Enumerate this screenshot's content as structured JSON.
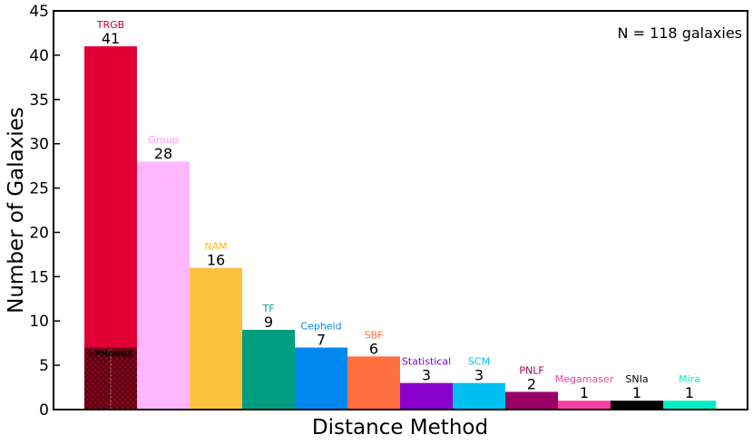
{
  "chart_data": {
    "type": "bar",
    "categories": [
      "TRGB",
      "Group",
      "NAM",
      "TF",
      "Cepheid",
      "SBF",
      "Statistical",
      "SCM",
      "PNLF",
      "Megamaser",
      "SNIa",
      "Mira"
    ],
    "values": [
      41,
      28,
      16,
      9,
      7,
      6,
      3,
      3,
      2,
      1,
      1,
      1
    ],
    "value_labels": [
      "41",
      "28",
      "16",
      "9",
      "7",
      "6",
      "3",
      "3",
      "2",
      "1",
      "1",
      "1"
    ],
    "colors": [
      "#e00034",
      "#ffb8ff",
      "#ffc23e",
      "#009e80",
      "#0088ee",
      "#ff6f3f",
      "#8800cc",
      "#00c0f2",
      "#990066",
      "#f53fa0",
      "#000000",
      "#00eec4"
    ],
    "label_colors": [
      "#cc0033",
      "#ff99ff",
      "#ffb81c",
      "#009e80",
      "#0088ee",
      "#ff6f3f",
      "#8800cc",
      "#00c0f2",
      "#990066",
      "#f53fa0",
      "#000000",
      "#00eec4"
    ],
    "hatched_subset": {
      "category": "TRGB",
      "value": 7,
      "label": "+PHANGS",
      "color": "#990020"
    },
    "xlabel": "Distance Method",
    "ylabel": "Number of Galaxies",
    "ylim": [
      0,
      45
    ],
    "yticks": [
      0,
      5,
      10,
      15,
      20,
      25,
      30,
      35,
      40,
      45
    ],
    "annotation": "N = 118 galaxies",
    "grid": false,
    "legend": "none"
  }
}
